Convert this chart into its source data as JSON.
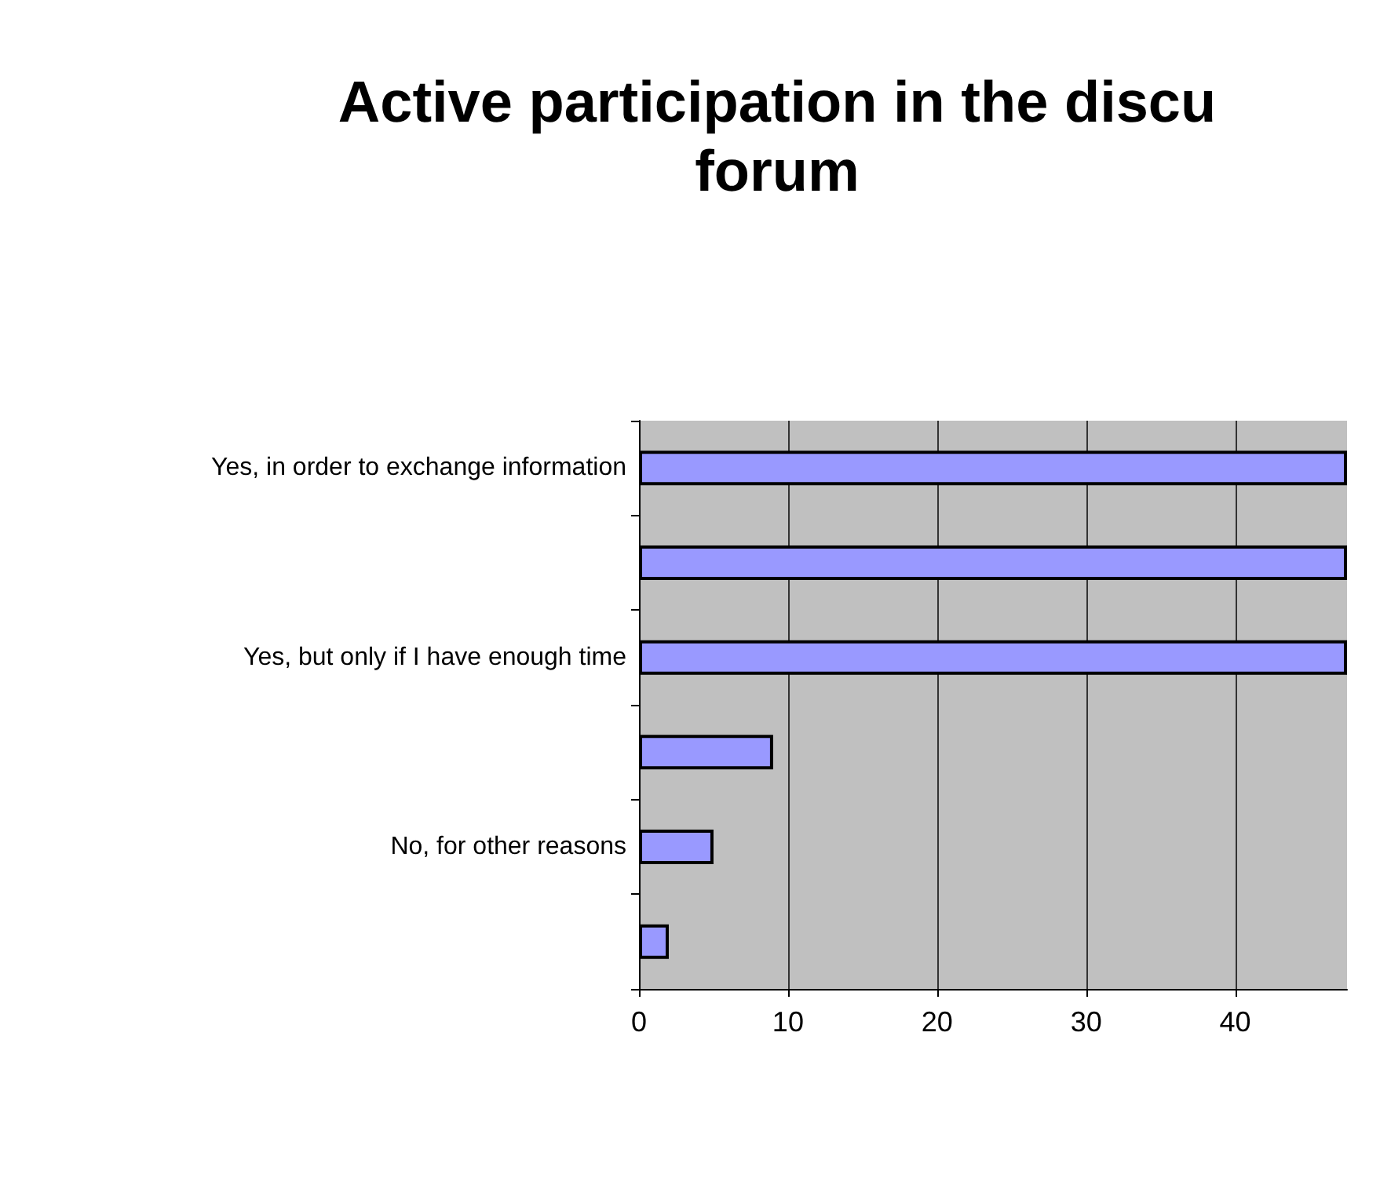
{
  "chart_data": {
    "type": "bar",
    "orientation": "horizontal",
    "title": "Active participation in the discu\nforum",
    "categories": [
      "Yes, in order to exchange information",
      null,
      "Yes, but only if I have enough time",
      null,
      "No, for other reasons",
      null
    ],
    "values": [
      47.5,
      47.5,
      47.5,
      9,
      5,
      2
    ],
    "color": "#9999ff",
    "xlim": [
      0,
      47.5
    ],
    "xticks": [
      0,
      10,
      20,
      30,
      40
    ],
    "grid": "x"
  }
}
